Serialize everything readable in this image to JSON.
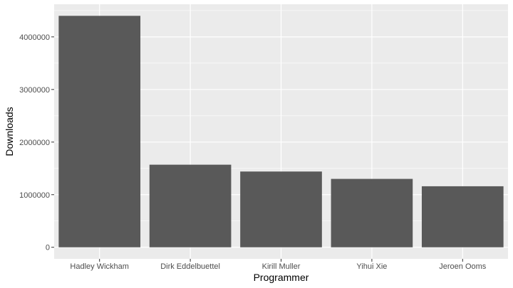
{
  "chart_data": {
    "type": "bar",
    "title": "",
    "xlabel": "Programmer",
    "ylabel": "Downloads",
    "categories": [
      "Hadley Wickham",
      "Dirk Eddelbuettel",
      "Kirill Muller",
      "Yihui Xie",
      "Jeroen Ooms"
    ],
    "values": [
      4400000,
      1570000,
      1440000,
      1300000,
      1160000
    ],
    "ylim": [
      -220000,
      4620000
    ],
    "yticks": [
      0,
      1000000,
      2000000,
      3000000,
      4000000
    ],
    "ytick_labels": [
      "0",
      "1000000",
      "2000000",
      "3000000",
      "4000000"
    ],
    "grid": true,
    "legend": "none",
    "colors": {
      "panel": "#ebebeb",
      "grid_major": "#ffffff",
      "bar": "#595959",
      "tick_text": "#4d4d4d",
      "axis_tick": "#333333"
    }
  }
}
